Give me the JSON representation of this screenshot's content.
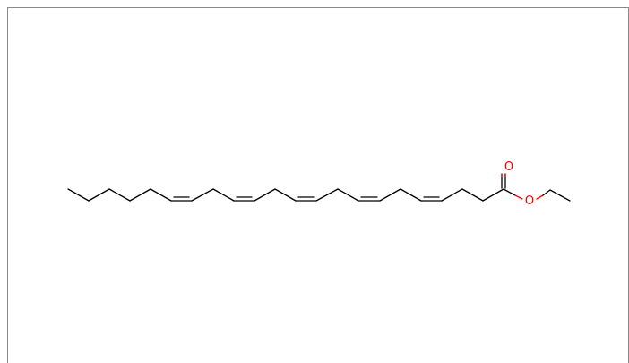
{
  "molecule": {
    "atoms": [
      {
        "id": "carbonyl_oxygen",
        "symbol": "O"
      },
      {
        "id": "ester_oxygen",
        "symbol": "O"
      }
    ],
    "colors": {
      "bond": "#000000",
      "oxygen": "#ff0000",
      "frame": "#8a8a8a",
      "background": "#ffffff"
    }
  }
}
